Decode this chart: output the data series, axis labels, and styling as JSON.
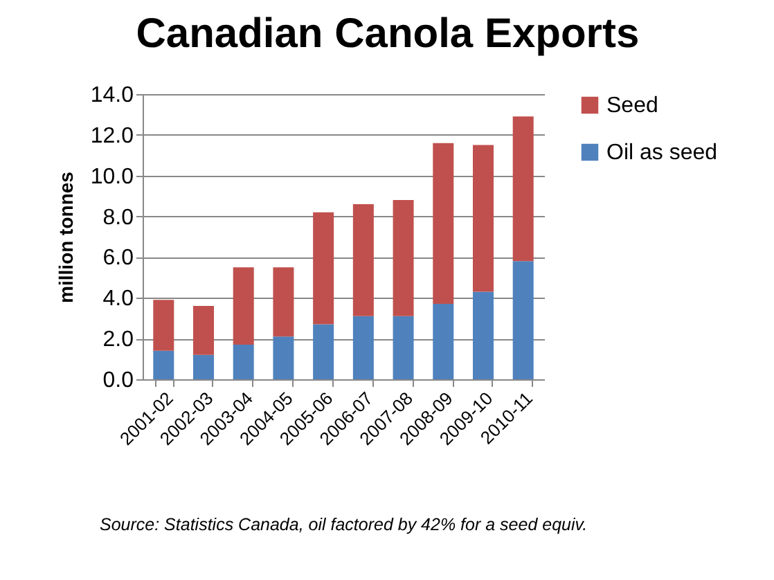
{
  "chart_data": {
    "type": "bar",
    "title": "Canadian Canola Exports",
    "ylabel": "million tonnes",
    "categories": [
      "2001-02",
      "2002-03",
      "2003-04",
      "2004-05",
      "2005-06",
      "2006-07",
      "2007-08",
      "2008-09",
      "2009-10",
      "2010-11"
    ],
    "series": [
      {
        "name": "Oil as seed",
        "color": "#4f81bd",
        "values": [
          1.4,
          1.2,
          1.7,
          2.1,
          2.7,
          3.1,
          3.1,
          3.7,
          4.3,
          5.8
        ]
      },
      {
        "name": "Seed",
        "color": "#c0504d",
        "values": [
          2.5,
          2.4,
          3.8,
          3.4,
          5.5,
          5.5,
          5.7,
          7.9,
          7.2,
          7.1
        ]
      }
    ],
    "stacked": true,
    "ylim": [
      0,
      14
    ],
    "yticks": [
      {
        "value": 0,
        "label": "0.0"
      },
      {
        "value": 2,
        "label": "2.0"
      },
      {
        "value": 4,
        "label": "4.0"
      },
      {
        "value": 6,
        "label": "6.0"
      },
      {
        "value": 8,
        "label": "8.0"
      },
      {
        "value": 10,
        "label": "10.0"
      },
      {
        "value": 12,
        "label": "12.0"
      },
      {
        "value": 14,
        "label": "14.0"
      }
    ],
    "grid": "y",
    "legend": "right",
    "annotations": [
      "Source: Statistics Canada, oil factored by 42%  for a seed equiv."
    ]
  }
}
